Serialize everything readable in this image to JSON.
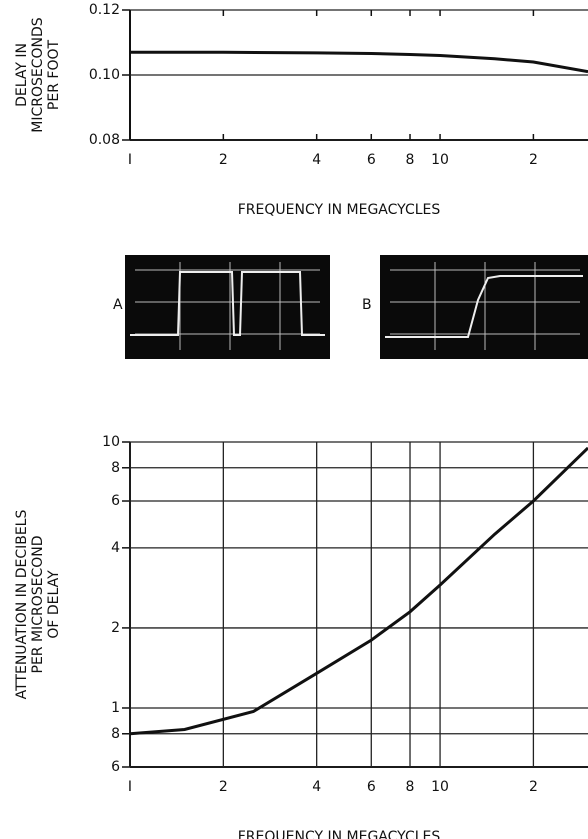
{
  "chart_data": [
    {
      "type": "line",
      "xlabel": "FREQUENCY IN MEGACYCLES",
      "ylabel": [
        "DELAY IN",
        "MICROSECONDS",
        "PER FOOT"
      ],
      "x_log": true,
      "y_log": false,
      "x_grid": false,
      "y_grid": true,
      "xlim": [
        1,
        30
      ],
      "xticks": [
        {
          "value": 1,
          "label": "I"
        },
        2,
        4,
        6,
        8,
        10,
        {
          "value": 20,
          "label": "2"
        }
      ],
      "ylim": [
        0.08,
        0.12
      ],
      "yticks": [
        {
          "value": 0.08,
          "label": "0.08"
        },
        {
          "value": 0.1,
          "label": "0.10"
        },
        0.12
      ],
      "color": "#111111",
      "x": [
        1,
        2,
        4,
        6,
        8,
        10,
        15,
        20,
        30
      ],
      "values": [
        0.107,
        0.107,
        0.1068,
        0.1066,
        0.1063,
        0.106,
        0.105,
        0.104,
        0.101
      ]
    },
    {
      "type": "line",
      "xlabel": "FREQUENCY IN MEGACYCLES",
      "ylabel": [
        "ATTENUATION IN DECIBELS",
        "PER MICROSECOND",
        "OF DELAY"
      ],
      "x_log": true,
      "y_log": true,
      "x_grid": true,
      "y_grid": true,
      "xlim": [
        1,
        30
      ],
      "xticks": [
        {
          "value": 1,
          "label": "I"
        },
        2,
        4,
        6,
        8,
        10,
        {
          "value": 20,
          "label": "2"
        }
      ],
      "ylim": [
        0.6,
        10
      ],
      "yticks": [
        {
          "value": 0.6,
          "label": "6"
        },
        {
          "value": 0.8,
          "label": "8"
        },
        1,
        2,
        4,
        6,
        8,
        10
      ],
      "color": "#111111",
      "x": [
        1,
        1.5,
        2.5,
        4,
        6,
        8,
        10,
        15,
        20,
        30
      ],
      "values": [
        0.8,
        0.83,
        0.97,
        1.35,
        1.8,
        2.3,
        2.9,
        4.5,
        6,
        9.5
      ]
    }
  ],
  "oscillograms": {
    "labels": [
      "A",
      "B"
    ]
  }
}
